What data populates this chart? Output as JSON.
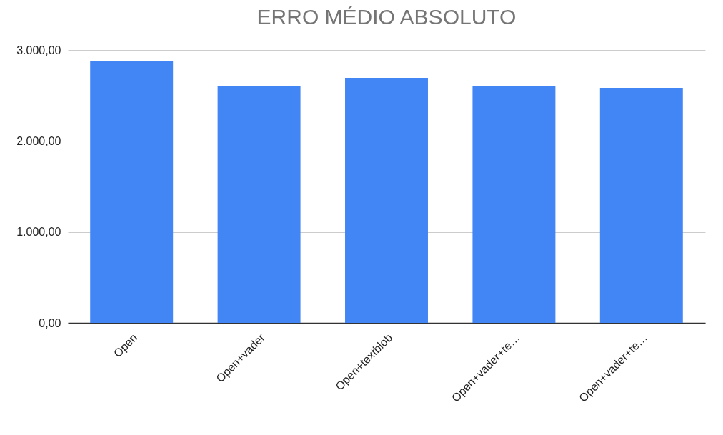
{
  "chart_data": {
    "type": "bar",
    "title": "ERRO MÉDIO ABSOLUTO",
    "categories": [
      "Open",
      "Open+vader",
      "Open+textblob",
      "Open+vader+te…",
      "Open+vader+te…"
    ],
    "values": [
      2874,
      2607,
      2694,
      2607,
      2584
    ],
    "color": "#4285f4",
    "ylim": [
      0,
      3000
    ],
    "yticks": [
      {
        "value": 0,
        "label": "0,00"
      },
      {
        "value": 1000,
        "label": "1.000,00"
      },
      {
        "value": 2000,
        "label": "2.000,00"
      },
      {
        "value": 3000,
        "label": "3.000,00"
      }
    ],
    "grid": "y"
  }
}
